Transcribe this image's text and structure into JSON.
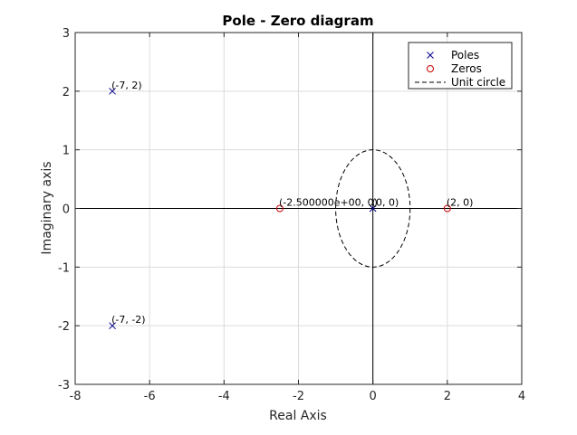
{
  "chart_data": {
    "type": "scatter",
    "title": "Pole - Zero diagram",
    "xlabel": "Real Axis",
    "ylabel": "Imaginary axis",
    "xlim": [
      -8,
      4
    ],
    "ylim": [
      -3,
      3
    ],
    "xticks": [
      -8,
      -6,
      -4,
      -2,
      0,
      2,
      4
    ],
    "yticks": [
      -3,
      -2,
      -1,
      0,
      1,
      2,
      3
    ],
    "xtick_labels": [
      "-8",
      "-6",
      "-4",
      "-2",
      "0",
      "2",
      "4"
    ],
    "ytick_labels": [
      "-3",
      "-2",
      "-1",
      "0",
      "1",
      "2",
      "3"
    ],
    "grid": true,
    "legend_position": "top-right",
    "series": [
      {
        "name": "Poles",
        "marker": "x",
        "color": "#00008b",
        "points": [
          {
            "x": -7,
            "y": 2,
            "label": "(-7, 2)"
          },
          {
            "x": -7,
            "y": -2,
            "label": "(-7, -2)"
          },
          {
            "x": 0,
            "y": 0,
            "label": "(0, 0)"
          }
        ]
      },
      {
        "name": "Zeros",
        "marker": "o",
        "color": "#cc0000",
        "points": [
          {
            "x": -2.5,
            "y": 0,
            "label": "(-2.500000e+00, 0)"
          },
          {
            "x": 2,
            "y": 0,
            "label": "(2, 0)"
          }
        ]
      }
    ],
    "unit_circle": {
      "name": "Unit circle",
      "radius": 1,
      "style": "dashed",
      "color": "#000000"
    },
    "axis_lines": {
      "x0": true,
      "y0": true,
      "color": "#000000"
    }
  }
}
